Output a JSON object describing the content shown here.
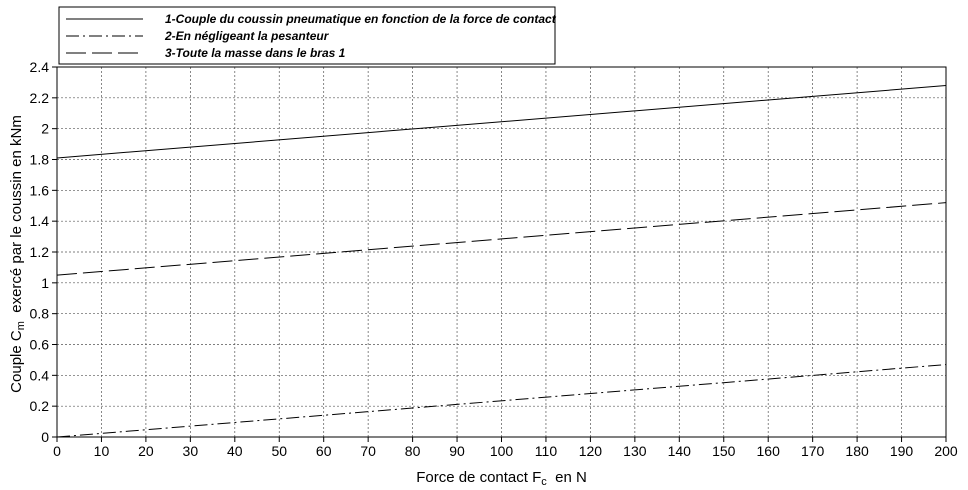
{
  "chart_data": {
    "type": "line",
    "title": "",
    "xlabel": "Force de contact F",
    "xlabel_sub": "c",
    "xlabel_suffix": "  en N",
    "ylabel": "Couple C",
    "ylabel_sub": "m",
    "ylabel_suffix": "  exercé par le coussin en kNm",
    "xlim": [
      0,
      200
    ],
    "ylim": [
      0,
      2.4
    ],
    "x_ticks": [
      0,
      10,
      20,
      30,
      40,
      50,
      60,
      70,
      80,
      90,
      100,
      110,
      120,
      130,
      140,
      150,
      160,
      170,
      180,
      190,
      200
    ],
    "y_ticks": [
      0,
      0.2,
      0.4,
      0.6,
      0.8,
      1,
      1.2,
      1.4,
      1.6,
      1.8,
      2,
      2.2,
      2.4
    ],
    "y_tick_labels": [
      "0",
      "0.2",
      "0.4",
      "0.6",
      "0.8",
      "1",
      "1.2",
      "1.4",
      "1.6",
      "1.8",
      "2",
      "2.2",
      "2.4"
    ],
    "grid": true,
    "legend_position": "top-left",
    "series": [
      {
        "name": "1-Couple du coussin pneumatique en fonction de la force de contact",
        "style": "solid",
        "x": [
          0,
          200
        ],
        "y": [
          1.81,
          2.28
        ]
      },
      {
        "name": "2-En négligeant la pesanteur",
        "style": "dashdot",
        "x": [
          0,
          200
        ],
        "y": [
          0.0,
          0.47
        ]
      },
      {
        "name": "3-Toute la masse dans le bras 1",
        "style": "dashed",
        "x": [
          0,
          200
        ],
        "y": [
          1.05,
          1.52
        ]
      }
    ],
    "colors": {
      "line": "#000000",
      "grid": "#555555",
      "background": "#ffffff"
    }
  }
}
